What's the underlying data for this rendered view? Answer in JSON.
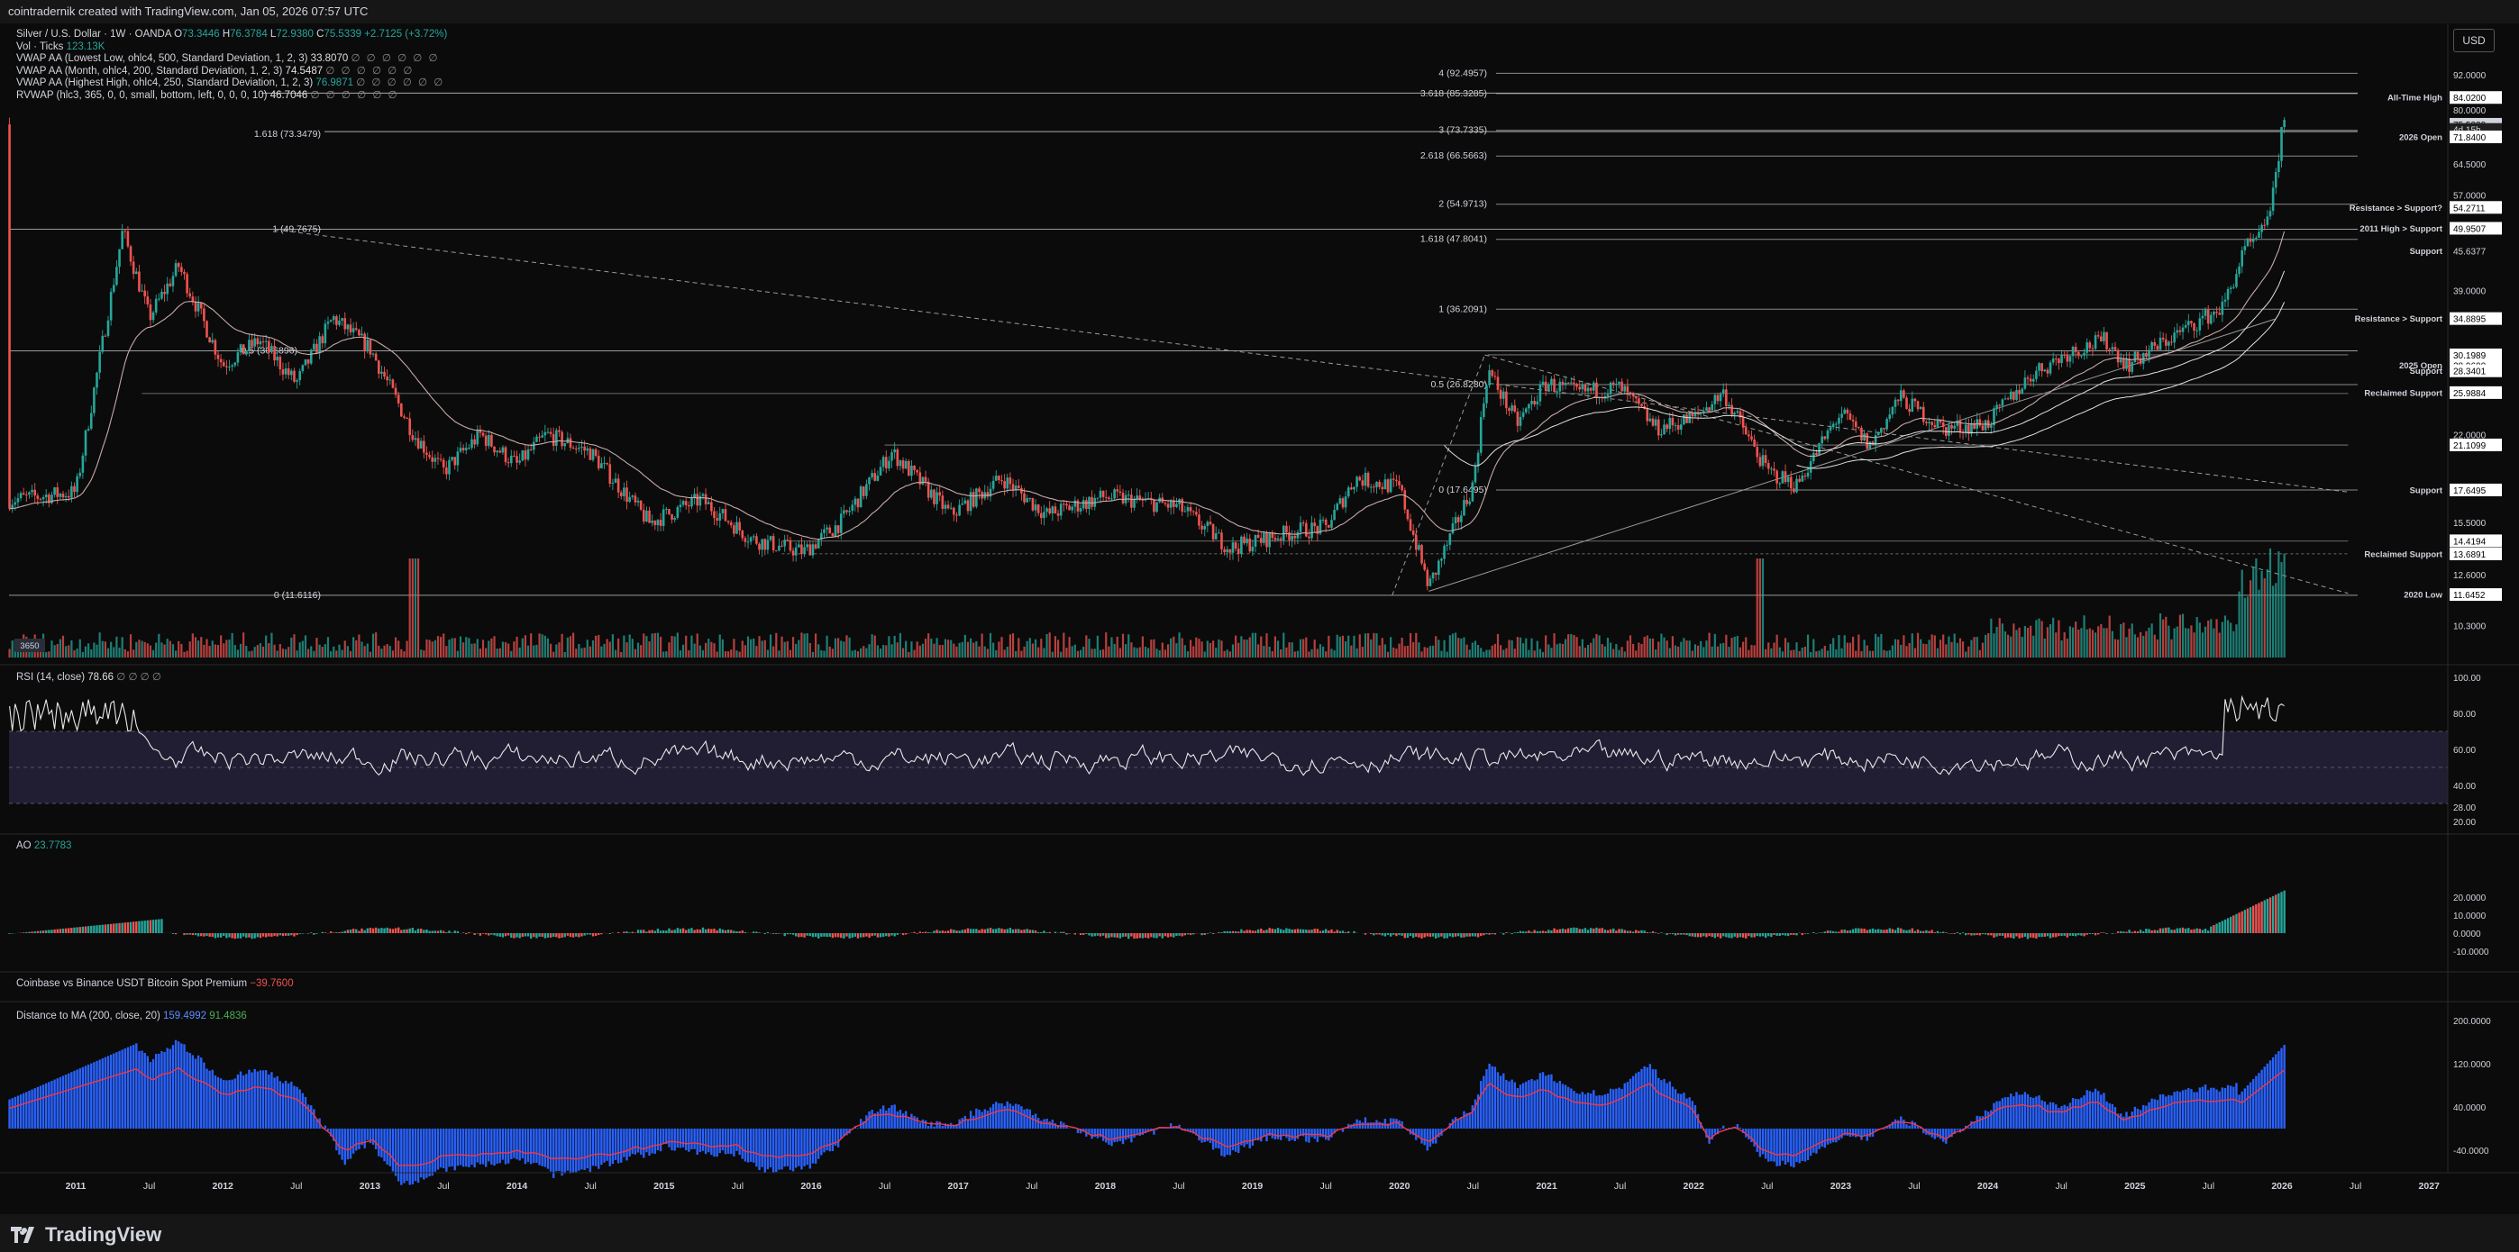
{
  "header": {
    "text": "cointradernik created with TradingView.com, Jan 05, 2026 07:57 UTC"
  },
  "footer": {
    "brand": "TradingView"
  },
  "price_axis_button": "USD",
  "symbol_line": {
    "title": "Silver / U.S. Dollar · 1W · OANDA",
    "o_label": "O",
    "o": "73.3446",
    "h_label": "H",
    "h": "76.3784",
    "l_label": "L",
    "l": "72.9380",
    "c_label": "C",
    "c": "75.5339",
    "change": "+2.7125 (+3.72%)"
  },
  "indicators": [
    {
      "label": "Vol · Ticks",
      "value": "123.13K",
      "sym": ""
    },
    {
      "label": "VWAP AA (Lowest Low, ohlc4, 500, Standard Deviation, 1, 2, 3)",
      "value": "33.8070",
      "sym": "∅ ∅ ∅ ∅ ∅ ∅"
    },
    {
      "label": "VWAP AA (Month, ohlc4, 200, Standard Deviation, 1, 2, 3)",
      "value": "74.5487",
      "sym": "∅ ∅ ∅ ∅ ∅ ∅"
    },
    {
      "label": "VWAP AA (Highest High, ohlc4, 250, Standard Deviation, 1, 2, 3)",
      "value": "76.9871",
      "sym": "∅ ∅ ∅ ∅ ∅ ∅"
    },
    {
      "label": "RVWAP (hlc3, 365, 0, 0, small, bottom, left, 0, 0, 0, 10)",
      "value": "46.7046",
      "sym": "∅ ∅ ∅ ∅ ∅ ∅"
    }
  ],
  "price_scale": [
    "92.0000",
    "80.0000",
    "64.5000",
    "57.0000",
    "45.6377",
    "39.0000",
    "22.0000",
    "15.5000",
    "12.6000",
    "10.3000"
  ],
  "price_tags": [
    {
      "value": "84.0200",
      "price": 84.02
    },
    {
      "value": "75.5339",
      "price": 75.5339,
      "highlight": true
    },
    {
      "value": "4d 15h",
      "price": 74.0,
      "countdown": true
    },
    {
      "value": "71.8400",
      "price": 71.84
    },
    {
      "value": "54.2711",
      "price": 54.2711
    },
    {
      "value": "49.9507",
      "price": 49.9507
    },
    {
      "value": "34.8895",
      "price": 34.8895
    },
    {
      "value": "30.1989",
      "price": 30.1989
    },
    {
      "value": "28.9600",
      "price": 28.96
    },
    {
      "value": "28.3401",
      "price": 28.3401
    },
    {
      "value": "25.9884",
      "price": 25.9884
    },
    {
      "value": "21.1099",
      "price": 21.1099
    },
    {
      "value": "17.6495",
      "price": 17.6495
    },
    {
      "value": "14.4194",
      "price": 14.4194
    },
    {
      "value": "13.6891",
      "price": 13.6891
    },
    {
      "value": "11.6452",
      "price": 11.6452
    }
  ],
  "levels": [
    {
      "label": "All-Time High",
      "price": 84.02
    },
    {
      "label": "2026 Open",
      "price": 71.84
    },
    {
      "label": "Resistance > Support?",
      "price": 54.2711
    },
    {
      "label": "2011 High > Support",
      "price": 49.9507
    },
    {
      "label": "Support",
      "price": 45.6377
    },
    {
      "label": "Resistance > Support",
      "price": 34.8895
    },
    {
      "label": "2025 Open",
      "price": 28.96
    },
    {
      "label": "Support",
      "price": 28.3401
    },
    {
      "label": "Reclaimed Support",
      "price": 25.9884
    },
    {
      "label": "Support",
      "price": 17.6495
    },
    {
      "label": "Reclaimed Support",
      "price": 13.6891
    },
    {
      "label": "2020 Low",
      "price": 11.6452
    }
  ],
  "fib_left": [
    {
      "label": "1 (49.7675)",
      "price": 49.7675
    },
    {
      "label": "0.5 (30.6896)",
      "price": 30.6896
    },
    {
      "label": "0 (11.6116)",
      "price": 11.6116
    },
    {
      "label": "1.618 (73.3479)",
      "price": 73.3479
    },
    {
      "label": "3 (73.7335)",
      "price": 73.7335
    }
  ],
  "fib_right": [
    {
      "label": "4 (92.4957)",
      "price": 92.4957
    },
    {
      "label": "3.618 (85.3285)",
      "price": 85.3285
    },
    {
      "label": "2.618 (66.5663)",
      "price": 66.5663
    },
    {
      "label": "2 (54.9713)",
      "price": 54.9713
    },
    {
      "label": "1.618 (47.8041)",
      "price": 47.8041
    },
    {
      "label": "1 (36.2091)",
      "price": 36.2091
    },
    {
      "label": "0.5 (26.8280)",
      "price": 26.828
    },
    {
      "label": "0 (17.6495)",
      "price": 17.6495
    }
  ],
  "volume_badge": "3650",
  "rsi": {
    "label": "RSI (14, close)",
    "value": "78.66",
    "sym": "∅ ∅ ∅ ∅",
    "scale": [
      "100.00",
      "80.00",
      "60.00",
      "40.00",
      "28.00",
      "20.00"
    ]
  },
  "ao": {
    "label": "AO",
    "value": "23.7783",
    "scale": [
      "20.0000",
      "10.0000",
      "0.0000",
      "-10.0000"
    ]
  },
  "premium": {
    "label": "Coinbase vs Binance USDT Bitcoin Spot Premium",
    "value": "−39.7600"
  },
  "dist": {
    "label": "Distance to MA (200, close, 20)",
    "value1": "159.4992",
    "value2": "91.4836",
    "scale": [
      "200.0000",
      "120.0000",
      "40.0000",
      "-40.0000"
    ]
  },
  "time_axis": [
    "2011",
    "Jul",
    "2012",
    "Jul",
    "2013",
    "Jul",
    "2014",
    "Jul",
    "2015",
    "Jul",
    "2016",
    "Jul",
    "2017",
    "Jul",
    "2018",
    "Jul",
    "2019",
    "Jul",
    "2020",
    "Jul",
    "2021",
    "Jul",
    "2022",
    "Jul",
    "2023",
    "Jul",
    "2024",
    "Jul",
    "2025",
    "Jul",
    "2026",
    "Jul",
    "2027"
  ],
  "price_anchors": [
    [
      2011.0,
      17.5
    ],
    [
      2011.32,
      49.5
    ],
    [
      2011.5,
      35
    ],
    [
      2011.7,
      43
    ],
    [
      2012.0,
      29
    ],
    [
      2012.25,
      32
    ],
    [
      2012.5,
      27
    ],
    [
      2012.75,
      35
    ],
    [
      2013.0,
      31
    ],
    [
      2013.3,
      22
    ],
    [
      2013.5,
      19
    ],
    [
      2013.75,
      22
    ],
    [
      2014.0,
      19.5
    ],
    [
      2014.2,
      22
    ],
    [
      2014.5,
      20.5
    ],
    [
      2014.9,
      15.5
    ],
    [
      2015.25,
      17
    ],
    [
      2015.6,
      14.5
    ],
    [
      2015.95,
      13.8
    ],
    [
      2016.2,
      15.5
    ],
    [
      2016.55,
      20.5
    ],
    [
      2016.95,
      16
    ],
    [
      2017.3,
      18.5
    ],
    [
      2017.6,
      16
    ],
    [
      2018.0,
      17.2
    ],
    [
      2018.5,
      16.5
    ],
    [
      2018.85,
      14
    ],
    [
      2019.3,
      15
    ],
    [
      2019.5,
      15.2
    ],
    [
      2019.7,
      18.5
    ],
    [
      2020.0,
      17.8
    ],
    [
      2020.2,
      12
    ],
    [
      2020.5,
      18
    ],
    [
      2020.6,
      28.5
    ],
    [
      2020.8,
      23
    ],
    [
      2021.0,
      27
    ],
    [
      2021.2,
      26
    ],
    [
      2021.5,
      26.5
    ],
    [
      2021.75,
      22.5
    ],
    [
      2022.0,
      23.5
    ],
    [
      2022.2,
      26
    ],
    [
      2022.5,
      19
    ],
    [
      2022.7,
      18
    ],
    [
      2023.0,
      24
    ],
    [
      2023.2,
      21
    ],
    [
      2023.4,
      25.5
    ],
    [
      2023.7,
      22.5
    ],
    [
      2024.0,
      23
    ],
    [
      2024.3,
      28
    ],
    [
      2024.55,
      30.5
    ],
    [
      2024.8,
      32
    ],
    [
      2024.95,
      29
    ],
    [
      2025.3,
      33
    ],
    [
      2025.6,
      36.5
    ],
    [
      2025.75,
      46
    ],
    [
      2025.85,
      48
    ],
    [
      2025.95,
      58
    ],
    [
      2026.0,
      75.5
    ]
  ],
  "colors": {
    "bg": "#0b0b0b",
    "up": "#26a69a",
    "down": "#ef5350",
    "rsi_band": "#211d33",
    "dist_bar": "#2962ff",
    "ma_red": "#f23645",
    "ma_green": "#4caf50",
    "vwap": "#c8a8a8"
  }
}
